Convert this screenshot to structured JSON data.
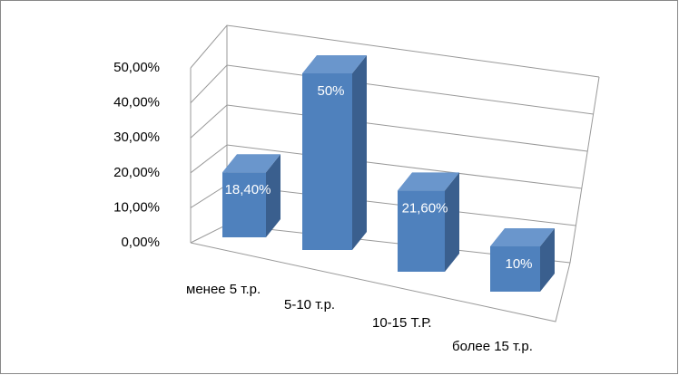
{
  "chart_data": {
    "type": "bar3d",
    "categories": [
      "менее 5 т.р.",
      "5-10 т.р.",
      "10-15 Т.Р.",
      "более 15 т.р."
    ],
    "values": [
      18.4,
      50,
      21.6,
      10
    ],
    "value_labels": [
      "18,40%",
      "50%",
      "21,60%",
      "10%"
    ],
    "color": "#4f81bd",
    "ylim": [
      0,
      50
    ],
    "yticks": [
      {
        "value": 0,
        "label": "0,00%"
      },
      {
        "value": 10,
        "label": "10,00%"
      },
      {
        "value": 20,
        "label": "20,00%"
      },
      {
        "value": 30,
        "label": "30,00%"
      },
      {
        "value": 40,
        "label": "40,00%"
      },
      {
        "value": 50,
        "label": "50,00%"
      }
    ],
    "grid": true
  }
}
